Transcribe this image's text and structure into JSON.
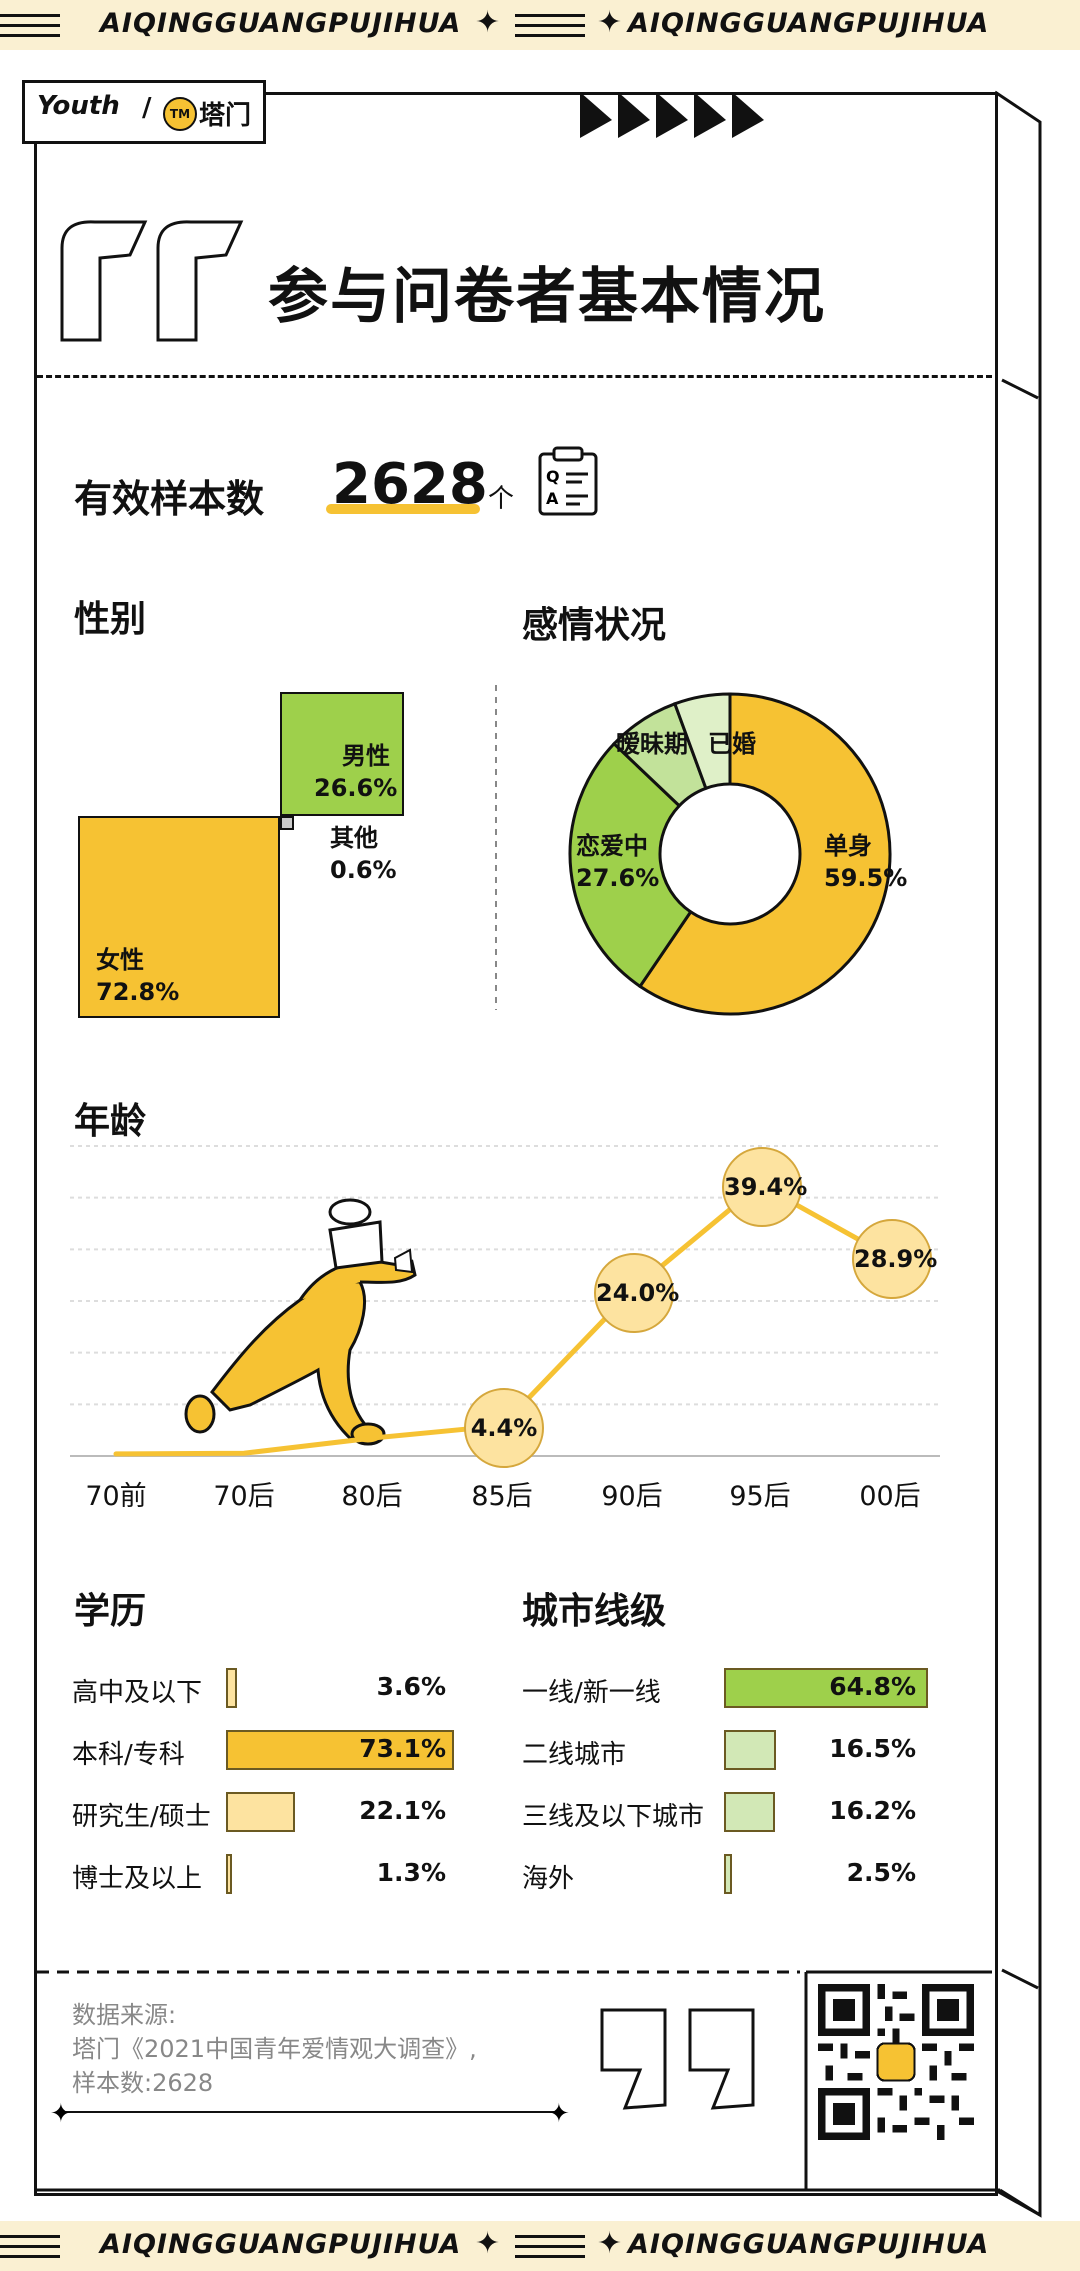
{
  "banner": {
    "text": "AIQINGGUANGPUJIHUA"
  },
  "logo": {
    "left_brand": "Youth",
    "right_mark": "TM",
    "right_brand": "塔门"
  },
  "title": "参与问卷者基本情况",
  "sample": {
    "label": "有效样本数",
    "value": "2628",
    "unit": "个",
    "icon": "qa-clipboard-icon"
  },
  "colors": {
    "yellow": "#f6c233",
    "green": "#9ed04b",
    "light_green": "#c2e29a",
    "pale_green": "#d2e8b6",
    "pale_yellow": "#fde3a0"
  },
  "chart_data": [
    {
      "type": "treemap",
      "title": "性别",
      "items": [
        {
          "name": "女性",
          "value": 72.8,
          "label": "72.8%",
          "color": "#f6c233"
        },
        {
          "name": "男性",
          "value": 26.6,
          "label": "26.6%",
          "color": "#9ed04b"
        },
        {
          "name": "其他",
          "value": 0.6,
          "label": "0.6%",
          "color": "#cccccc"
        }
      ]
    },
    {
      "type": "pie",
      "title": "感情状况",
      "slices": [
        {
          "name": "单身",
          "value": 59.5,
          "label": "59.5%",
          "color": "#f6c233"
        },
        {
          "name": "恋爱中",
          "value": 27.6,
          "label": "27.6%",
          "color": "#9ed04b"
        },
        {
          "name": "暧昧期",
          "value": 7.3,
          "label": "",
          "color": "#c2e29a"
        },
        {
          "name": "已婚",
          "value": 5.6,
          "label": "",
          "color": "#dff0c8"
        }
      ]
    },
    {
      "type": "line",
      "title": "年龄",
      "categories": [
        "70前",
        "70后",
        "80后",
        "85后",
        "90后",
        "95后",
        "00后"
      ],
      "values": [
        0.3,
        0.4,
        2.6,
        4.4,
        24.0,
        39.4,
        28.9
      ],
      "labels": [
        "",
        "",
        "",
        "4.4%",
        "24.0%",
        "39.4%",
        "28.9%"
      ],
      "ylim": [
        0,
        45
      ]
    },
    {
      "type": "bar",
      "title": "学历",
      "categories": [
        "高中及以下",
        "本科/专科",
        "研究生/硕士",
        "博士及以上"
      ],
      "values": [
        3.6,
        73.1,
        22.1,
        1.3
      ],
      "labels": [
        "3.6%",
        "73.1%",
        "22.1%",
        "1.3%"
      ]
    },
    {
      "type": "bar",
      "title": "城市线级",
      "categories": [
        "一线/新一线",
        "二线城市",
        "三线及以下城市",
        "海外"
      ],
      "values": [
        64.8,
        16.5,
        16.2,
        2.5
      ],
      "labels": [
        "64.8%",
        "16.5%",
        "16.2%",
        "2.5%"
      ]
    }
  ],
  "source": {
    "line1": "数据来源:",
    "line2": "塔门《2021中国青年爱情观大调查》,",
    "line3": "样本数:2628"
  }
}
